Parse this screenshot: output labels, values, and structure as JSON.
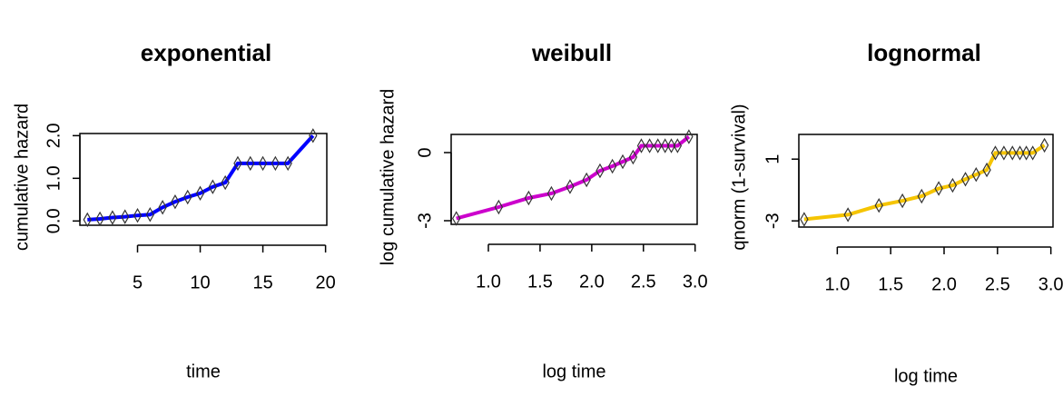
{
  "chart_data": [
    {
      "type": "line",
      "title": "exponential",
      "xlabel": "time",
      "ylabel": "cumulative hazard",
      "color": "#0000ff",
      "x": [
        1,
        2,
        3,
        4,
        5,
        6,
        7,
        8,
        9,
        10,
        11,
        12,
        13,
        14,
        15,
        16,
        17,
        19
      ],
      "values": [
        0.03,
        0.05,
        0.08,
        0.1,
        0.13,
        0.15,
        0.32,
        0.45,
        0.56,
        0.65,
        0.8,
        0.9,
        1.35,
        1.35,
        1.35,
        1.35,
        1.35,
        2.0
      ],
      "xlim": [
        0.4,
        20.1
      ],
      "xticks": [
        5,
        10,
        15,
        20
      ],
      "ylim": [
        -0.1,
        2.05
      ],
      "yticks": [
        {
          "value": 0,
          "label": "0.0"
        },
        {
          "value": 1,
          "label": "1.0"
        },
        {
          "value": 2,
          "label": "2.0"
        }
      ]
    },
    {
      "type": "line",
      "title": "weibull",
      "xlabel": "log time",
      "ylabel": "log cumulative hazard",
      "color": "#cc00cc",
      "x": [
        0.69,
        1.1,
        1.39,
        1.61,
        1.79,
        1.95,
        2.08,
        2.2,
        2.3,
        2.4,
        2.48,
        2.56,
        2.64,
        2.71,
        2.77,
        2.83,
        2.94
      ],
      "values": [
        -2.9,
        -2.4,
        -2.0,
        -1.8,
        -1.5,
        -1.2,
        -0.8,
        -0.6,
        -0.4,
        -0.2,
        0.3,
        0.3,
        0.3,
        0.3,
        0.3,
        0.3,
        0.7
      ],
      "xlim": [
        0.64,
        3.02
      ],
      "xticks": [
        {
          "value": 1,
          "label": "1.0"
        },
        1.5,
        {
          "value": 2,
          "label": "2.0"
        },
        2.5,
        {
          "value": 3,
          "label": "3.0"
        }
      ],
      "ylim": [
        -3.16,
        0.8
      ],
      "yticks": [
        -3,
        0
      ]
    },
    {
      "type": "line",
      "title": "lognormal",
      "xlabel": "log time",
      "ylabel": "qnorm (1-survival)",
      "color": "#f5c400",
      "x": [
        0.69,
        1.1,
        1.39,
        1.61,
        1.79,
        1.95,
        2.08,
        2.2,
        2.3,
        2.4,
        2.48,
        2.56,
        2.64,
        2.71,
        2.77,
        2.83,
        2.94
      ],
      "values": [
        -2.9,
        -2.6,
        -2.0,
        -1.7,
        -1.4,
        -0.9,
        -0.7,
        -0.3,
        0.0,
        0.3,
        1.4,
        1.4,
        1.4,
        1.4,
        1.4,
        1.4,
        1.9
      ],
      "xlim": [
        0.64,
        3.02
      ],
      "xticks": [
        {
          "value": 1,
          "label": "1.0"
        },
        1.5,
        {
          "value": 2,
          "label": "2.0"
        },
        2.5,
        {
          "value": 3,
          "label": "3.0"
        }
      ],
      "ylim": [
        -3.4,
        2.6
      ],
      "yticks": [
        -3,
        1
      ]
    }
  ]
}
